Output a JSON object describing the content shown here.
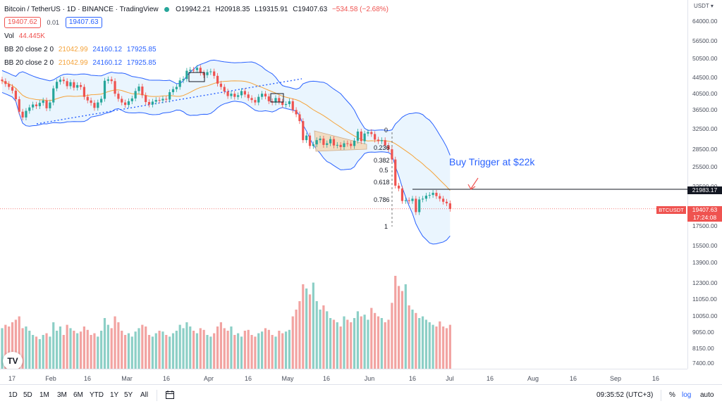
{
  "header": {
    "symbol": "Bitcoin / TetherUS · 1D · BINANCE · TradingView",
    "ohlc_O": "O19942.21",
    "ohlc_H": "H20918.35",
    "ohlc_L": "L19315.91",
    "ohlc_C": "C19407.63",
    "change": "−534.58 (−2.68%)",
    "sell_price": "19407.62",
    "spread": "0.01",
    "buy_price": "19407.63",
    "vol_label": "Vol",
    "vol_value": "44.445K",
    "bb1_label": "BB 20 close 2 0",
    "bb1_basis": "21042.99",
    "bb1_upper": "24160.12",
    "bb1_lower": "17925.85",
    "bb2_label": "BB 20 close 2 0",
    "bb2_basis": "21042.99",
    "bb2_upper": "24160.12",
    "bb2_lower": "17925.85"
  },
  "price_axis": {
    "unit": "USDT ▾",
    "ticks": [
      "64000.00",
      "56500.00",
      "50500.00",
      "44500.00",
      "40500.00",
      "36500.00",
      "32500.00",
      "28500.00",
      "25500.00",
      "22500.00",
      "17500.00",
      "15500.00",
      "13900.00",
      "12300.00",
      "11050.00",
      "10050.00",
      "9050.00",
      "8150.00",
      "7400.00"
    ]
  },
  "badges": {
    "trigger_price": "21983.17",
    "symbol_tag": "BTCUSDT",
    "last_price": "19407.63",
    "countdown": "17:24:08"
  },
  "annotations": {
    "buy_trigger": "Buy Trigger at $22k",
    "fib": [
      "0",
      "0.236",
      "0.382",
      "0.5",
      "0.618",
      "0.786",
      "1"
    ]
  },
  "time_axis": {
    "labels": [
      "17",
      "Feb",
      "16",
      "Mar",
      "16",
      "Apr",
      "16",
      "May",
      "16",
      "Jun",
      "16",
      "Jul",
      "16",
      "Aug",
      "16",
      "Sep",
      "16"
    ]
  },
  "toolbar": {
    "ranges": [
      "1D",
      "5D",
      "1M",
      "3M",
      "6M",
      "YTD",
      "1Y",
      "5Y",
      "All"
    ],
    "clock": "09:35:52 (UTC+3)",
    "percent": "%",
    "log": "log",
    "auto": "auto"
  },
  "colors": {
    "up": "#26a69a",
    "down": "#ef5350",
    "bb_band": "#2962ff",
    "bb_basis": "#f5a33a",
    "bb_fill": "#e3f2fd",
    "triangle_fill": "#f3d8b8",
    "trendline": "#2962ff"
  },
  "chart_data": {
    "type": "candlestick",
    "symbol": "BTCUSDT",
    "timeframe": "1D",
    "scale": "log",
    "close_prices": [
      43900,
      43100,
      42300,
      41300,
      39100,
      36100,
      34800,
      36300,
      37100,
      37800,
      37400,
      38200,
      38800,
      36900,
      38300,
      41900,
      43700,
      44300,
      43900,
      42500,
      43600,
      42100,
      42800,
      42300,
      39700,
      38800,
      38200,
      37000,
      38300,
      39200,
      44000,
      44400,
      43900,
      40500,
      39200,
      38300,
      37700,
      38600,
      39300,
      41200,
      42400,
      40100,
      38400,
      37800,
      38500,
      38900,
      38800,
      39200,
      39000,
      40900,
      41700,
      42300,
      44100,
      44500,
      46900,
      47200,
      47100,
      47800,
      46300,
      45600,
      46500,
      46700,
      45400,
      43200,
      42300,
      41100,
      39900,
      40500,
      39700,
      40100,
      41200,
      40300,
      39400,
      38900,
      38300,
      39700,
      40500,
      39800,
      38600,
      38300,
      39400,
      38500,
      37700,
      37900,
      38600,
      36500,
      35500,
      34000,
      30100,
      31000,
      29000,
      29300,
      30100,
      30400,
      29200,
      29500,
      30300,
      29100,
      29200,
      28800,
      29500,
      29400,
      29000,
      30000,
      31800,
      29900,
      31400,
      31700,
      31300,
      30200,
      29900,
      30100,
      29100,
      28400,
      26600,
      22500,
      22100,
      20400,
      20500,
      20400,
      20700,
      19000,
      20600,
      20700,
      21100,
      21200,
      21500,
      21050,
      20700,
      20300,
      20100,
      19400
    ],
    "volume_approx_k": [
      48,
      52,
      50,
      55,
      58,
      62,
      48,
      50,
      45,
      40,
      38,
      35,
      40,
      42,
      38,
      55,
      45,
      50,
      40,
      52,
      48,
      45,
      42,
      44,
      50,
      46,
      40,
      42,
      38,
      45,
      60,
      52,
      48,
      62,
      55,
      45,
      40,
      42,
      38,
      44,
      48,
      52,
      50,
      40,
      38,
      42,
      45,
      44,
      40,
      38,
      42,
      45,
      52,
      48,
      55,
      50,
      45,
      42,
      48,
      46,
      40,
      38,
      42,
      50,
      55,
      48,
      45,
      50,
      40,
      42,
      38,
      45,
      46,
      40,
      38,
      42,
      44,
      48,
      46,
      40,
      38,
      45,
      42,
      44,
      46,
      62,
      70,
      80,
      100,
      95,
      88,
      102,
      80,
      70,
      75,
      68,
      60,
      58,
      55,
      50,
      62,
      58,
      55,
      60,
      68,
      62,
      64,
      58,
      72,
      66,
      62,
      60,
      55,
      58,
      78,
      110,
      98,
      92,
      100,
      75,
      70,
      66,
      60,
      62,
      58,
      55,
      52,
      50,
      56,
      50,
      48,
      52
    ],
    "bollinger_bands": {
      "period": 20,
      "source": "close",
      "mult": 2,
      "basis": 21042.99,
      "upper": 24160.12,
      "lower": 17925.85
    },
    "horizontal_line": 21983.17,
    "last_price": 19407.63,
    "fibonacci_levels": [
      0,
      0.236,
      0.382,
      0.5,
      0.618,
      0.786,
      1
    ],
    "annotation": "Buy Trigger at $22k"
  }
}
